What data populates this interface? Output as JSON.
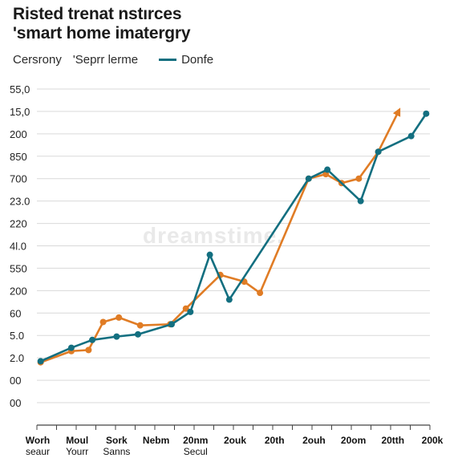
{
  "title": {
    "line1": "Risted trenat nstırces",
    "line2": "'smart home imatergry"
  },
  "legend": {
    "left_text": "Cersrony",
    "series_a_label": "'Seprr lerme",
    "series_b_label": "Donfe"
  },
  "watermark": "dreamstime.",
  "colors": {
    "orange": "#e07c25",
    "teal": "#136f80",
    "grid": "#d9d9d9",
    "axis": "#444444"
  },
  "chart_data": {
    "type": "line",
    "title": "Risted trenat nstırces 'smart home imatergry",
    "y_tick_labels": [
      "55,0",
      "15,0",
      "200",
      "850",
      "700",
      "23.0",
      "220",
      "4l.0",
      "550",
      "200",
      "60",
      "5.0",
      "2.0",
      "00",
      "00"
    ],
    "x_tick_labels": [
      [
        "Worh",
        "seaur"
      ],
      [
        "Moul",
        "Yourr"
      ],
      [
        "Sork",
        "Sanns"
      ],
      [
        "Nebm",
        ""
      ],
      [
        "20nm",
        "Secul"
      ],
      [
        "2ouk",
        ""
      ],
      [
        "20th",
        ""
      ],
      [
        "2ouh",
        ""
      ],
      [
        "20om",
        ""
      ],
      [
        "20tth",
        ""
      ],
      [
        "200k",
        ""
      ]
    ],
    "grid": true,
    "legend_position": "top-left",
    "y_range": [
      0,
      14
    ],
    "x_range": [
      0,
      10.5
    ],
    "series": [
      {
        "name": "'Seprr lerme",
        "color": "#e07c25",
        "arrow_end": true,
        "x": [
          0.1,
          0.92,
          1.38,
          1.77,
          2.19,
          2.76,
          3.56,
          3.98,
          4.9,
          5.54,
          5.96,
          7.26,
          7.72,
          8.14,
          8.6,
          9.12,
          9.66
        ],
        "y": [
          1.8,
          2.3,
          2.35,
          3.6,
          3.8,
          3.45,
          3.5,
          4.2,
          5.7,
          5.4,
          4.9,
          10.0,
          10.2,
          9.8,
          10.0,
          11.2,
          13.0
        ]
      },
      {
        "name": "Donfe",
        "color": "#136f80",
        "arrow_end": false,
        "x": [
          0.1,
          0.92,
          1.48,
          2.13,
          2.7,
          3.6,
          4.1,
          4.62,
          5.14,
          7.26,
          7.76,
          8.65,
          9.12,
          10.0,
          10.4
        ],
        "y": [
          1.85,
          2.45,
          2.8,
          2.95,
          3.05,
          3.5,
          4.05,
          6.6,
          4.6,
          10.0,
          10.4,
          9.0,
          11.2,
          11.9,
          12.9
        ]
      }
    ]
  }
}
